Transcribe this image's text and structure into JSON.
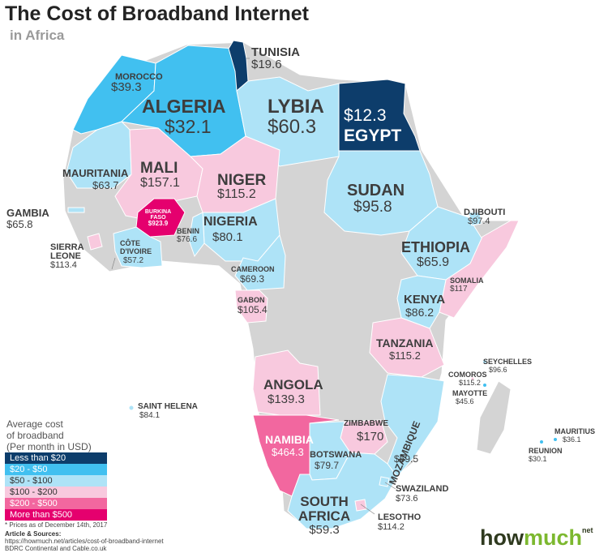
{
  "title": "The Cost of Broadband Internet",
  "subtitle": "in Africa",
  "colors": {
    "lt20": "#0d3d6b",
    "20_50": "#41c0f0",
    "50_100": "#aee3f7",
    "100_200": "#f8c9de",
    "200_500": "#f2679f",
    "gt500": "#e5006e",
    "nodata": "#d4d4d4"
  },
  "countries": {
    "tunisia": {
      "name": "TUNISIA",
      "value": "$19.6"
    },
    "morocco": {
      "name": "MOROCCO",
      "value": "$39.3"
    },
    "algeria": {
      "name": "ALGERIA",
      "value": "$32.1"
    },
    "lybia": {
      "name": "LYBIA",
      "value": "$60.3"
    },
    "egypt": {
      "name": "EGYPT",
      "value": "$12.3"
    },
    "mauritania": {
      "name": "MAURITANIA",
      "value": "$63.7"
    },
    "mali": {
      "name": "MALI",
      "value": "$157.1"
    },
    "niger": {
      "name": "NIGER",
      "value": "$115.2"
    },
    "sudan": {
      "name": "SUDAN",
      "value": "$95.8"
    },
    "djibouti": {
      "name": "DJIBOUTI",
      "value": "$97.4"
    },
    "gambia": {
      "name": "GAMBIA",
      "value": "$65.8"
    },
    "burkina": {
      "name_line1": "BURKINA",
      "name_line2": "FASO",
      "value": "$923.9"
    },
    "nigeria": {
      "name": "NIGERIA",
      "value": "$80.1"
    },
    "benin": {
      "name": "BENIN",
      "value": "$76.6"
    },
    "sierra_leone": {
      "name_line1": "SIERRA",
      "name_line2": "LEONE",
      "value": "$113.4"
    },
    "cote_divoire": {
      "name_line1": "CÔTE",
      "name_line2": "D'IVOIRE",
      "value": "$57.2"
    },
    "ethiopia": {
      "name": "ETHIOPIA",
      "value": "$65.9"
    },
    "somalia": {
      "name": "SOMALIA",
      "value": "$117"
    },
    "cameroon": {
      "name": "CAMEROON",
      "value": "$69.3"
    },
    "gabon": {
      "name": "GABON",
      "value": "$105.4"
    },
    "kenya": {
      "name": "KENYA",
      "value": "$86.2"
    },
    "tanzania": {
      "name": "TANZANIA",
      "value": "$115.2"
    },
    "seychelles": {
      "name": "SEYCHELLES",
      "value": "$96.6"
    },
    "comoros": {
      "name": "COMOROS",
      "value": "$115.2"
    },
    "mayotte": {
      "name": "MAYOTTE",
      "value": "$45.6"
    },
    "angola": {
      "name": "ANGOLA",
      "value": "$139.3"
    },
    "saint_helena": {
      "name": "SAINT HELENA",
      "value": "$84.1"
    },
    "mozambique": {
      "name": "MOZAMBIQUE",
      "value": "$69.5"
    },
    "zimbabwe": {
      "name": "ZIMBABWE",
      "value": "$170"
    },
    "namibia": {
      "name": "NAMIBIA",
      "value": "$464.3"
    },
    "botswana": {
      "name": "BOTSWANA",
      "value": "$79.7"
    },
    "mauritius": {
      "name": "MAURITIUS",
      "value": "$36.1"
    },
    "reunion": {
      "name": "REUNION",
      "value": "$30.1"
    },
    "swaziland": {
      "name": "SWAZILAND",
      "value": "$73.6"
    },
    "south_africa": {
      "name_line1": "SOUTH",
      "name_line2": "AFRICA",
      "value": "$59.3"
    },
    "lesotho": {
      "name": "LESOTHO",
      "value": "$114.2"
    }
  },
  "legend": {
    "title_line1": "Average cost",
    "title_line2": "of broadband",
    "title_line3": "(Per month in USD)",
    "items": [
      "Less than $20",
      "$20 - $50",
      "$50 - $100",
      "$100 - $200",
      "$200 - $500",
      "More than $500"
    ]
  },
  "footer": {
    "note": "* Prices as of December 14th, 2017",
    "sources_heading": "Article & Sources:",
    "source_url": "https://howmuch.net/articles/cost-of-broadband-internet",
    "source_line2": "BDRC Continental and Cable.co.uk"
  },
  "logo": {
    "part1": "how",
    "part2": "much",
    "suffix": "net"
  }
}
